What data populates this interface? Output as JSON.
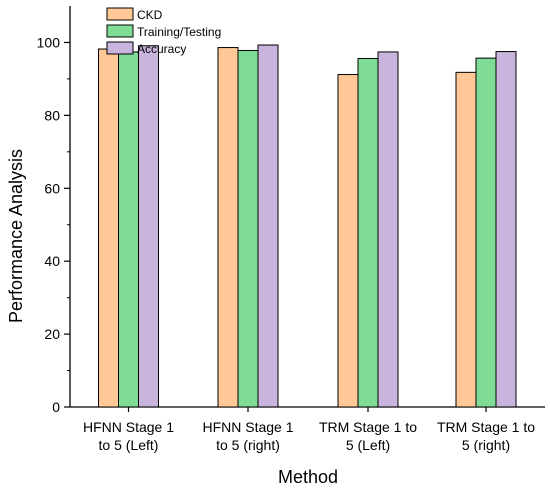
{
  "chart_data": {
    "type": "bar",
    "categories": [
      [
        "HFNN Stage 1",
        "to 5 (Left)"
      ],
      [
        "HFNN Stage 1",
        "to 5 (right)"
      ],
      [
        "TRM Stage 1 to",
        "5 (Left)"
      ],
      [
        "TRM Stage 1 to",
        "5 (right)"
      ]
    ],
    "series": [
      {
        "name": "CKD",
        "values": [
          98.2,
          98.6,
          91.2,
          91.8
        ],
        "color": "#FFC896"
      },
      {
        "name": "Training/Testing",
        "values": [
          97.4,
          97.8,
          95.6,
          95.7
        ],
        "color": "#7FDC96"
      },
      {
        "name": "Accuracy",
        "values": [
          99.1,
          99.3,
          97.4,
          97.5
        ],
        "color": "#C8B4DC"
      }
    ],
    "xlabel": "Method",
    "ylabel": "Performance Analysis",
    "ylim": [
      0,
      110
    ],
    "yticks": [
      0,
      20,
      40,
      60,
      80,
      100
    ],
    "grid": false,
    "legend_position": "top-left"
  }
}
